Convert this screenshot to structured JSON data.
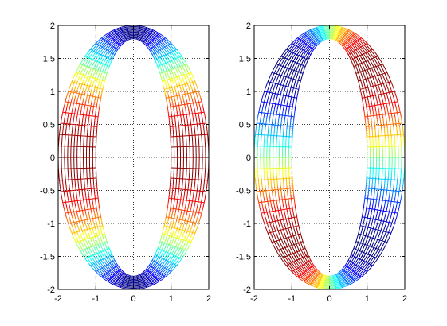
{
  "chart_data": [
    {
      "type": "mesh",
      "panel": "left",
      "xlim": [
        -2,
        2
      ],
      "ylim": [
        -2,
        2
      ],
      "xticks": [
        -2,
        -1,
        0,
        1,
        2
      ],
      "yticks": [
        -2,
        -1.5,
        -1,
        -0.5,
        0,
        0.5,
        1,
        1.5,
        2
      ],
      "xtick_labels": [
        "-2",
        "-1",
        "0",
        "1",
        "2"
      ],
      "ytick_labels": [
        "-2",
        "-1.5",
        "-1",
        "-0.5",
        "0",
        "0.5",
        "1",
        "1.5",
        "2"
      ],
      "grid": true,
      "colormap": "jet",
      "ring": {
        "inner_rx": 1,
        "inner_ry": 1.8,
        "outer_rx": 2,
        "outer_ry": 2,
        "inner_radius": 1,
        "outer_radius": 2
      },
      "color_function": "cos(2*theta)"
    },
    {
      "type": "mesh",
      "panel": "right",
      "xlim": [
        -2,
        2
      ],
      "ylim": [
        -2,
        2
      ],
      "xticks": [
        -2,
        -1,
        0,
        1,
        2
      ],
      "yticks": [
        -2,
        -1.5,
        -1,
        -0.5,
        0,
        0.5,
        1,
        1.5,
        2
      ],
      "xtick_labels": [
        "-2",
        "-1",
        "0",
        "1",
        "2"
      ],
      "ytick_labels": [
        "-2",
        "-1.5",
        "-1",
        "-0.5",
        "0",
        "0.5",
        "1",
        "1.5",
        "2"
      ],
      "grid": true,
      "colormap": "jet",
      "ring": {
        "inner_rx": 1,
        "inner_ry": 1.8,
        "outer_rx": 2,
        "outer_ry": 2,
        "inner_radius": 1,
        "outer_radius": 2
      },
      "color_function": "sin(2*theta)"
    }
  ]
}
